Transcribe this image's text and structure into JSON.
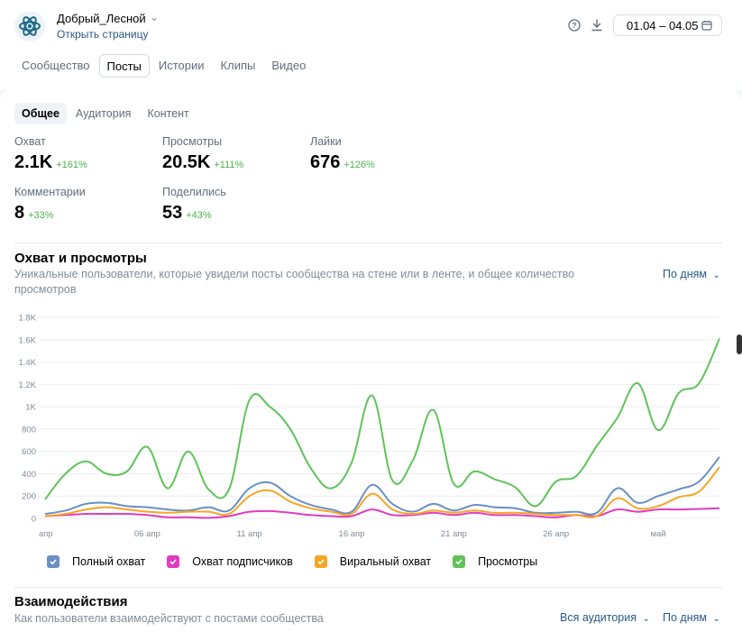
{
  "header": {
    "group_name": "Добрый_Лесной",
    "open_page": "Открыть страницу",
    "date_range": "01.04 – 04.05"
  },
  "tabs": [
    {
      "label": "Сообщество",
      "active": false
    },
    {
      "label": "Посты",
      "active": true
    },
    {
      "label": "Истории",
      "active": false
    },
    {
      "label": "Клипы",
      "active": false
    },
    {
      "label": "Видео",
      "active": false
    }
  ],
  "subtabs": [
    {
      "label": "Общее",
      "active": true
    },
    {
      "label": "Аудитория",
      "active": false
    },
    {
      "label": "Контент",
      "active": false
    }
  ],
  "metrics": [
    {
      "label": "Охват",
      "value": "2.1K",
      "delta": "+161%"
    },
    {
      "label": "Просмотры",
      "value": "20.5K",
      "delta": "+111%"
    },
    {
      "label": "Лайки",
      "value": "676",
      "delta": "+126%"
    },
    {
      "label": "Комментарии",
      "value": "8",
      "delta": "+33%"
    },
    {
      "label": "Поделились",
      "value": "53",
      "delta": "+43%"
    }
  ],
  "reach_section": {
    "title": "Охват и просмотры",
    "description": "Уникальные пользователи, которые увидели посты сообщества на стене или в ленте, и общее количество просмотров",
    "period": "По дням"
  },
  "interactions_section": {
    "title": "Взаимодействия",
    "description": "Как пользователи взаимодействуют с постами сообщества",
    "audience": "Вся аудитория",
    "period": "По дням"
  },
  "colors": {
    "full_reach": "#6a8fc3",
    "subscribers_reach": "#e13cbf",
    "viral_reach": "#f6a623",
    "views": "#5fc35a",
    "link": "#2a5885",
    "positive": "#4bb34b"
  },
  "chart_data": {
    "type": "line",
    "x": [
      "1 апр",
      "2 апр",
      "3 апр",
      "4 апр",
      "5 апр",
      "6 апр",
      "7 апр",
      "8 апр",
      "9 апр",
      "10 апр",
      "11 апр",
      "12 апр",
      "13 апр",
      "14 апр",
      "15 апр",
      "16 апр",
      "17 апр",
      "18 апр",
      "19 апр",
      "20 апр",
      "21 апр",
      "22 апр",
      "23 апр",
      "24 апр",
      "25 апр",
      "26 апр",
      "27 апр",
      "28 апр",
      "29 апр",
      "30 апр",
      "1 май",
      "2 май",
      "3 май",
      "4 май"
    ],
    "x_tick_labels": [
      "апр",
      "06 апр",
      "11 апр",
      "16 апр",
      "21 апр",
      "26 апр",
      "май"
    ],
    "x_tick_index": [
      0,
      5,
      10,
      15,
      20,
      25,
      30
    ],
    "y_ticks": [
      0,
      200,
      400,
      600,
      800,
      1000,
      1200,
      1400,
      1600,
      1800
    ],
    "y_tick_labels": [
      "0",
      "200",
      "400",
      "600",
      "800",
      "1K",
      "1.2K",
      "1.4K",
      "1.6K",
      "1.8K"
    ],
    "ylim": [
      0,
      1800
    ],
    "legend_position": "bottom",
    "series": [
      {
        "name": "Полный охват",
        "color": "#6a8fc3",
        "values": [
          40,
          70,
          130,
          140,
          110,
          100,
          80,
          70,
          100,
          70,
          270,
          320,
          200,
          120,
          80,
          60,
          300,
          130,
          60,
          130,
          70,
          120,
          100,
          90,
          50,
          50,
          60,
          50,
          270,
          140,
          200,
          260,
          330,
          550
        ]
      },
      {
        "name": "Охват подписчиков",
        "color": "#e13cbf",
        "values": [
          20,
          30,
          40,
          40,
          40,
          30,
          10,
          10,
          5,
          20,
          60,
          65,
          50,
          30,
          20,
          20,
          80,
          30,
          30,
          50,
          30,
          50,
          30,
          30,
          20,
          10,
          30,
          20,
          80,
          60,
          80,
          80,
          85,
          90
        ]
      },
      {
        "name": "Виральный охват",
        "color": "#f6a623",
        "values": [
          20,
          40,
          80,
          100,
          80,
          60,
          50,
          60,
          60,
          40,
          200,
          250,
          150,
          90,
          60,
          40,
          220,
          80,
          40,
          70,
          50,
          70,
          50,
          50,
          40,
          30,
          30,
          20,
          180,
          90,
          110,
          190,
          240,
          460
        ]
      },
      {
        "name": "Просмотры",
        "color": "#5fc35a",
        "values": [
          170,
          400,
          510,
          400,
          420,
          640,
          270,
          600,
          260,
          260,
          1060,
          1000,
          800,
          450,
          270,
          500,
          1100,
          340,
          520,
          970,
          310,
          420,
          350,
          280,
          110,
          330,
          380,
          650,
          900,
          1210,
          790,
          1120,
          1210,
          1610
        ]
      }
    ]
  }
}
